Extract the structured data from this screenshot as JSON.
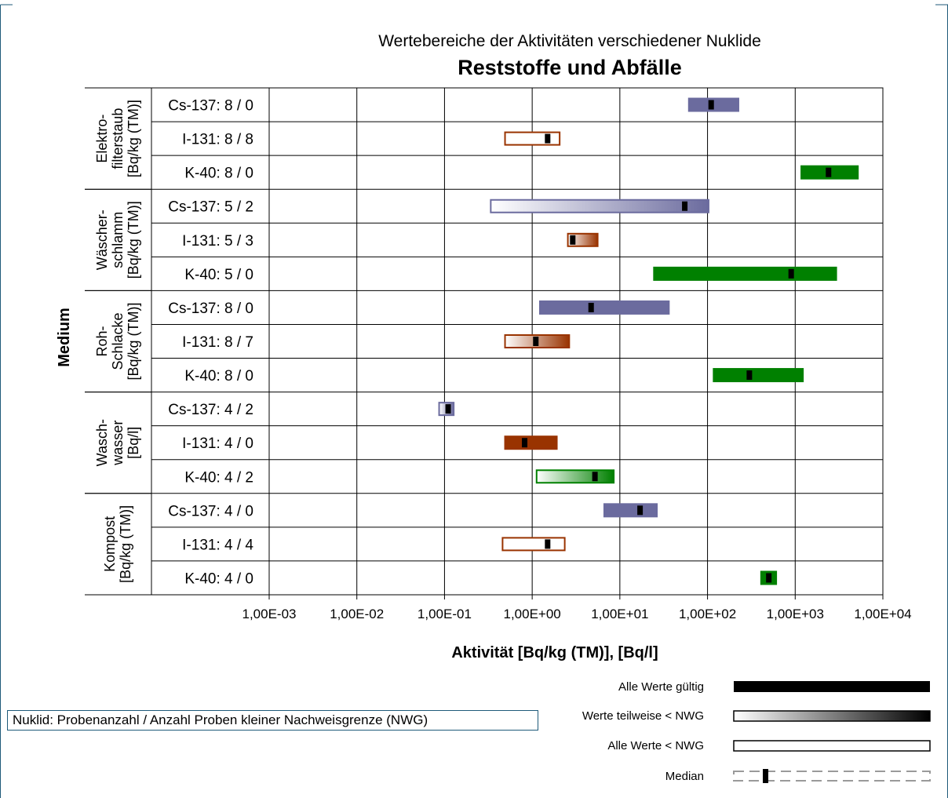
{
  "chart_data": {
    "type": "bar",
    "subtitle": "Wertebereiche der Aktivitäten verschiedener Nuklide",
    "title": "Reststoffe und Abfälle",
    "ylabel": "Medium",
    "xlabel": "Aktivität [Bq/kg (TM)], [Bq/l]",
    "x_scale": "log",
    "xlim": [
      0.001,
      10000
    ],
    "x_ticks": [
      "1,00E-03",
      "1,00E-02",
      "1,00E-01",
      "1,00E+00",
      "1,00E+01",
      "1,00E+02",
      "1,00E+03",
      "1,00E+04"
    ],
    "x_tick_values": [
      0.001,
      0.01,
      0.1,
      1,
      10,
      100,
      1000,
      10000
    ],
    "grid": "vertical",
    "colors": {
      "Cs-137": "#6b6b9e",
      "I-131": "#993300",
      "K-40": "#008000"
    },
    "groups": [
      {
        "label": [
          "Elektro-",
          "filterstaub",
          "[Bq/kg (TM)]"
        ],
        "rows": [
          {
            "label": "Cs-137: 8 / 0",
            "nuclide": "Cs-137",
            "min": 60,
            "max": 230,
            "median": 110,
            "status": "all_valid"
          },
          {
            "label": "I-131: 8 / 8",
            "nuclide": "I-131",
            "min": 0.48,
            "max": 2.1,
            "median": 1.5,
            "status": "all_below_nwg"
          },
          {
            "label": "K-40: 8 / 0",
            "nuclide": "K-40",
            "min": 1150,
            "max": 5300,
            "median": 2400,
            "status": "all_valid"
          }
        ]
      },
      {
        "label": [
          "Wäscher-",
          "schlamm",
          "[Bq/kg (TM)]"
        ],
        "rows": [
          {
            "label": "Cs-137: 5 / 2",
            "nuclide": "Cs-137",
            "min": 0.33,
            "max": 105,
            "median": 55,
            "status": "partly_below_nwg"
          },
          {
            "label": "I-131: 5 / 3",
            "nuclide": "I-131",
            "min": 2.5,
            "max": 5.7,
            "median": 2.9,
            "status": "partly_below_nwg"
          },
          {
            "label": "K-40: 5 / 0",
            "nuclide": "K-40",
            "min": 24,
            "max": 3000,
            "median": 900,
            "status": "all_valid"
          }
        ]
      },
      {
        "label": [
          "Roh-",
          "Schlacke",
          "[Bq/kg (TM)]"
        ],
        "rows": [
          {
            "label": "Cs-137: 8 / 0",
            "nuclide": "Cs-137",
            "min": 1.2,
            "max": 37,
            "median": 4.7,
            "status": "all_valid"
          },
          {
            "label": "I-131: 8 / 7",
            "nuclide": "I-131",
            "min": 0.48,
            "max": 2.7,
            "median": 1.1,
            "status": "partly_below_nwg"
          },
          {
            "label": "K-40: 8 / 0",
            "nuclide": "K-40",
            "min": 115,
            "max": 1250,
            "median": 300,
            "status": "all_valid"
          }
        ]
      },
      {
        "label": [
          "Wasch-",
          "wasser",
          "[Bq/l]"
        ],
        "rows": [
          {
            "label": "Cs-137: 4 / 2",
            "nuclide": "Cs-137",
            "min": 0.085,
            "max": 0.13,
            "median": 0.11,
            "status": "partly_below_nwg"
          },
          {
            "label": "I-131: 4 / 0",
            "nuclide": "I-131",
            "min": 0.48,
            "max": 1.95,
            "median": 0.82,
            "status": "all_valid"
          },
          {
            "label": "K-40: 4 / 2",
            "nuclide": "K-40",
            "min": 1.1,
            "max": 8.7,
            "median": 5.2,
            "status": "partly_below_nwg"
          }
        ]
      },
      {
        "label": [
          "Kompost",
          "[Bq/kg (TM)]"
        ],
        "rows": [
          {
            "label": "Cs-137: 4 / 0",
            "nuclide": "Cs-137",
            "min": 6.5,
            "max": 27,
            "median": 17,
            "status": "all_valid"
          },
          {
            "label": "I-131: 4 / 4",
            "nuclide": "I-131",
            "min": 0.45,
            "max": 2.4,
            "median": 1.5,
            "status": "all_below_nwg"
          },
          {
            "label": "K-40: 4 / 0",
            "nuclide": "K-40",
            "min": 400,
            "max": 620,
            "median": 500,
            "status": "all_valid"
          }
        ]
      }
    ],
    "legend": {
      "placement": "bottom-right",
      "items": [
        {
          "key": "all_valid",
          "label": "Alle Werte gültig"
        },
        {
          "key": "partly_below_nwg",
          "label": "Werte teilweise < NWG"
        },
        {
          "key": "all_below_nwg",
          "label": "Alle Werte < NWG"
        },
        {
          "key": "median",
          "label": "Median"
        }
      ]
    },
    "note": "Nuklid: Probenanzahl / Anzahl Proben kleiner Nachweisgrenze (NWG)"
  }
}
